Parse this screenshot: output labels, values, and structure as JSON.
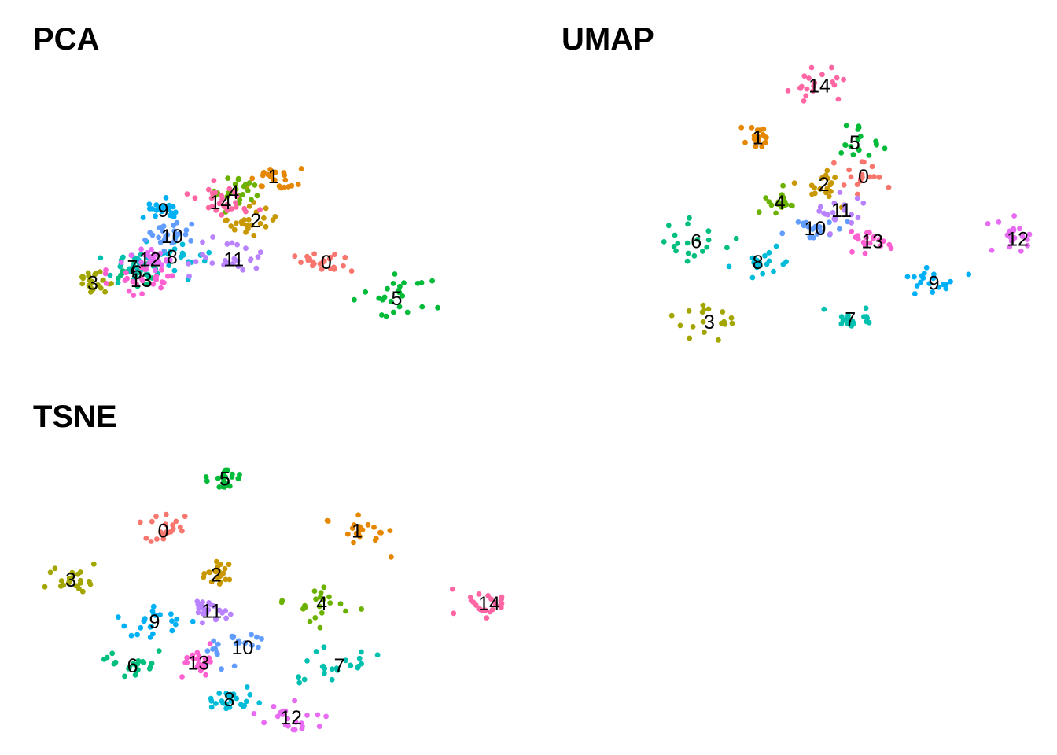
{
  "chart_data": [
    {
      "type": "scatter",
      "title": "PCA",
      "xlabel": "",
      "ylabel": "",
      "grid": false,
      "legend": "none",
      "clusters": [
        {
          "label": "0",
          "x": 0.63,
          "y": 0.7
        },
        {
          "label": "1",
          "x": 0.51,
          "y": 0.37
        },
        {
          "label": "2",
          "x": 0.47,
          "y": 0.54
        },
        {
          "label": "3",
          "x": 0.1,
          "y": 0.78
        },
        {
          "label": "4",
          "x": 0.42,
          "y": 0.43
        },
        {
          "label": "5",
          "x": 0.79,
          "y": 0.84
        },
        {
          "label": "6",
          "x": 0.2,
          "y": 0.74
        },
        {
          "label": "7",
          "x": 0.19,
          "y": 0.72
        },
        {
          "label": "8",
          "x": 0.28,
          "y": 0.68
        },
        {
          "label": "9",
          "x": 0.26,
          "y": 0.5
        },
        {
          "label": "10",
          "x": 0.28,
          "y": 0.6
        },
        {
          "label": "11",
          "x": 0.42,
          "y": 0.69
        },
        {
          "label": "12",
          "x": 0.23,
          "y": 0.69
        },
        {
          "label": "13",
          "x": 0.21,
          "y": 0.77
        },
        {
          "label": "14",
          "x": 0.39,
          "y": 0.47
        }
      ]
    },
    {
      "type": "scatter",
      "title": "UMAP",
      "xlabel": "",
      "ylabel": "",
      "grid": false,
      "legend": "none",
      "clusters": [
        {
          "label": "0",
          "x": 0.65,
          "y": 0.37
        },
        {
          "label": "1",
          "x": 0.41,
          "y": 0.22
        },
        {
          "label": "2",
          "x": 0.56,
          "y": 0.4
        },
        {
          "label": "3",
          "x": 0.3,
          "y": 0.93
        },
        {
          "label": "4",
          "x": 0.46,
          "y": 0.47
        },
        {
          "label": "5",
          "x": 0.63,
          "y": 0.24
        },
        {
          "label": "6",
          "x": 0.27,
          "y": 0.62
        },
        {
          "label": "7",
          "x": 0.62,
          "y": 0.92
        },
        {
          "label": "8",
          "x": 0.41,
          "y": 0.7
        },
        {
          "label": "9",
          "x": 0.81,
          "y": 0.78
        },
        {
          "label": "10",
          "x": 0.54,
          "y": 0.57
        },
        {
          "label": "11",
          "x": 0.6,
          "y": 0.5
        },
        {
          "label": "12",
          "x": 1.0,
          "y": 0.61
        },
        {
          "label": "13",
          "x": 0.67,
          "y": 0.62
        },
        {
          "label": "14",
          "x": 0.55,
          "y": 0.02
        }
      ]
    },
    {
      "type": "scatter",
      "title": "TSNE",
      "xlabel": "",
      "ylabel": "",
      "grid": false,
      "legend": "none",
      "clusters": [
        {
          "label": "0",
          "x": 0.26,
          "y": 0.28
        },
        {
          "label": "1",
          "x": 0.7,
          "y": 0.28
        },
        {
          "label": "2",
          "x": 0.38,
          "y": 0.45
        },
        {
          "label": "3",
          "x": 0.05,
          "y": 0.47
        },
        {
          "label": "4",
          "x": 0.62,
          "y": 0.56
        },
        {
          "label": "5",
          "x": 0.4,
          "y": 0.08
        },
        {
          "label": "6",
          "x": 0.19,
          "y": 0.8
        },
        {
          "label": "7",
          "x": 0.66,
          "y": 0.8
        },
        {
          "label": "8",
          "x": 0.41,
          "y": 0.93
        },
        {
          "label": "9",
          "x": 0.24,
          "y": 0.63
        },
        {
          "label": "10",
          "x": 0.44,
          "y": 0.73
        },
        {
          "label": "11",
          "x": 0.37,
          "y": 0.59
        },
        {
          "label": "12",
          "x": 0.55,
          "y": 1.0
        },
        {
          "label": "13",
          "x": 0.34,
          "y": 0.79
        },
        {
          "label": "14",
          "x": 1.0,
          "y": 0.56
        }
      ]
    }
  ],
  "palette": [
    "#F8766D",
    "#E58700",
    "#C99800",
    "#A3A500",
    "#6BB100",
    "#00BA38",
    "#00BF7D",
    "#00C0AF",
    "#00BCD8",
    "#00B0F6",
    "#619CFF",
    "#B983FF",
    "#E76BF3",
    "#FD61D1",
    "#FF67A4"
  ]
}
